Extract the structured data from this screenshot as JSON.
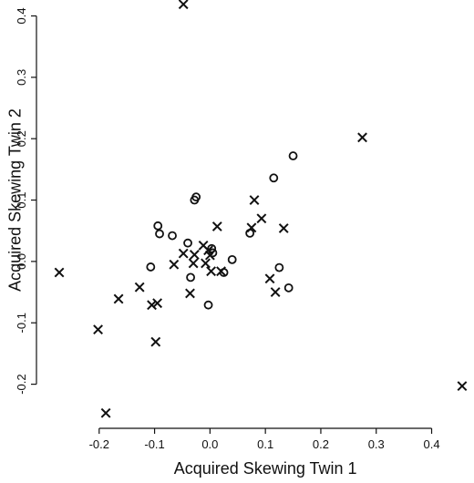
{
  "chart_data": {
    "type": "scatter",
    "title": "",
    "xlabel": "Acquired Skewing Twin 1",
    "ylabel": "Acquired Skewing Twin 2",
    "xlim": [
      -0.3,
      0.46
    ],
    "ylim": [
      -0.26,
      0.42
    ],
    "x_ticks": [
      "-0.2",
      "-0.1",
      "0.0",
      "0.1",
      "0.2",
      "0.3",
      "0.4"
    ],
    "x_tick_values": [
      -0.2,
      -0.1,
      0.0,
      0.1,
      0.2,
      0.3,
      0.4
    ],
    "y_ticks": [
      "-0.2",
      "-0.1",
      "0.0",
      "0.1",
      "0.2",
      "0.3",
      "0.4"
    ],
    "y_tick_values": [
      -0.2,
      -0.1,
      0.0,
      0.1,
      0.2,
      0.3,
      0.4
    ],
    "grid": false,
    "series": [
      {
        "marker": "x",
        "color": "#111111",
        "points": [
          [
            -0.048,
            0.419
          ],
          [
            0.275,
            0.202
          ],
          [
            0.455,
            -0.203
          ],
          [
            -0.272,
            -0.018
          ],
          [
            -0.202,
            -0.111
          ],
          [
            -0.188,
            -0.247
          ],
          [
            -0.165,
            -0.061
          ],
          [
            -0.127,
            -0.042
          ],
          [
            -0.105,
            -0.071
          ],
          [
            -0.095,
            -0.068
          ],
          [
            -0.098,
            -0.131
          ],
          [
            -0.065,
            -0.005
          ],
          [
            -0.048,
            0.013
          ],
          [
            -0.036,
            -0.052
          ],
          [
            -0.03,
            -0.003
          ],
          [
            -0.028,
            0.011
          ],
          [
            -0.012,
            0.026
          ],
          [
            -0.008,
            -0.003
          ],
          [
            -0.003,
            0.018
          ],
          [
            0.0,
            0.01
          ],
          [
            0.002,
            -0.016
          ],
          [
            0.013,
            0.057
          ],
          [
            0.02,
            -0.016
          ],
          [
            0.08,
            0.1
          ],
          [
            0.075,
            0.055
          ],
          [
            0.093,
            0.07
          ],
          [
            0.108,
            -0.028
          ],
          [
            0.118,
            -0.05
          ],
          [
            0.133,
            0.054
          ]
        ]
      },
      {
        "marker": "o",
        "color": "#111111",
        "points": [
          [
            0.15,
            0.172
          ],
          [
            0.115,
            0.136
          ],
          [
            -0.025,
            0.105
          ],
          [
            -0.028,
            0.1
          ],
          [
            -0.094,
            0.058
          ],
          [
            -0.091,
            0.045
          ],
          [
            -0.068,
            0.042
          ],
          [
            -0.04,
            0.03
          ],
          [
            -0.107,
            -0.009
          ],
          [
            -0.035,
            -0.026
          ],
          [
            -0.003,
            -0.071
          ],
          [
            0.003,
            0.021
          ],
          [
            0.005,
            0.014
          ],
          [
            0.025,
            -0.018
          ],
          [
            0.04,
            0.003
          ],
          [
            0.072,
            0.046
          ],
          [
            0.125,
            -0.01
          ],
          [
            0.142,
            -0.043
          ]
        ]
      }
    ]
  }
}
